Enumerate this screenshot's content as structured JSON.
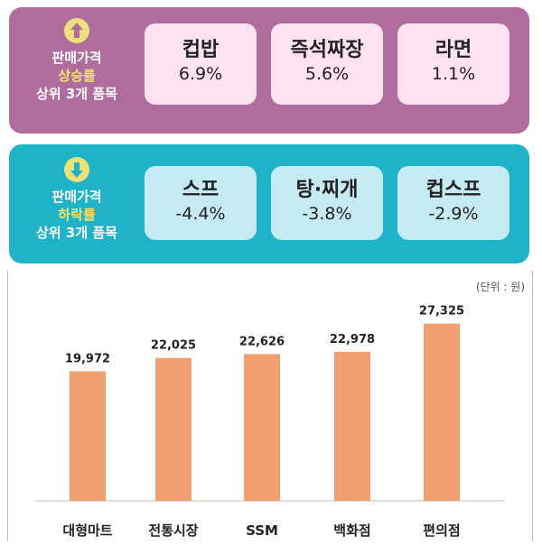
{
  "increase_panel": {
    "label_line1": "판매가격",
    "label_line2": "상승률",
    "label_line3": "상위 3개 품목",
    "items": [
      {
        "name": "컵밥",
        "value": "6.9%"
      },
      {
        "name": "즉석짜장",
        "value": "5.6%"
      },
      {
        "name": "라면",
        "value": "1.1%"
      }
    ]
  },
  "decrease_panel": {
    "label_line1": "판매가격",
    "label_line2": "하락률",
    "label_line3": "상위 3개 품목",
    "items": [
      {
        "name": "스프",
        "value": "-4.4%"
      },
      {
        "name": "탕·찌개",
        "value": "-3.8%"
      },
      {
        "name": "컵스프",
        "value": "-2.9%"
      }
    ]
  },
  "colors": {
    "increase_panel": "#b06c9c",
    "decrease_panel": "#1fb3c9",
    "bar": "#f0a070"
  },
  "icons": {
    "increase": "arrow-up-circle-icon",
    "decrease": "arrow-down-circle-icon"
  },
  "chart_data": {
    "type": "bar",
    "unit_note": "(단위 : 원)",
    "categories": [
      "대형마트",
      "전통시장",
      "SSM",
      "백화점",
      "편의점"
    ],
    "values": [
      19972,
      22025,
      22626,
      22978,
      27325
    ],
    "value_labels": [
      "19,972",
      "22,025",
      "22,626",
      "22,978",
      "27,325"
    ],
    "ylim": [
      0,
      32000
    ],
    "grid": false,
    "legend": "none"
  }
}
